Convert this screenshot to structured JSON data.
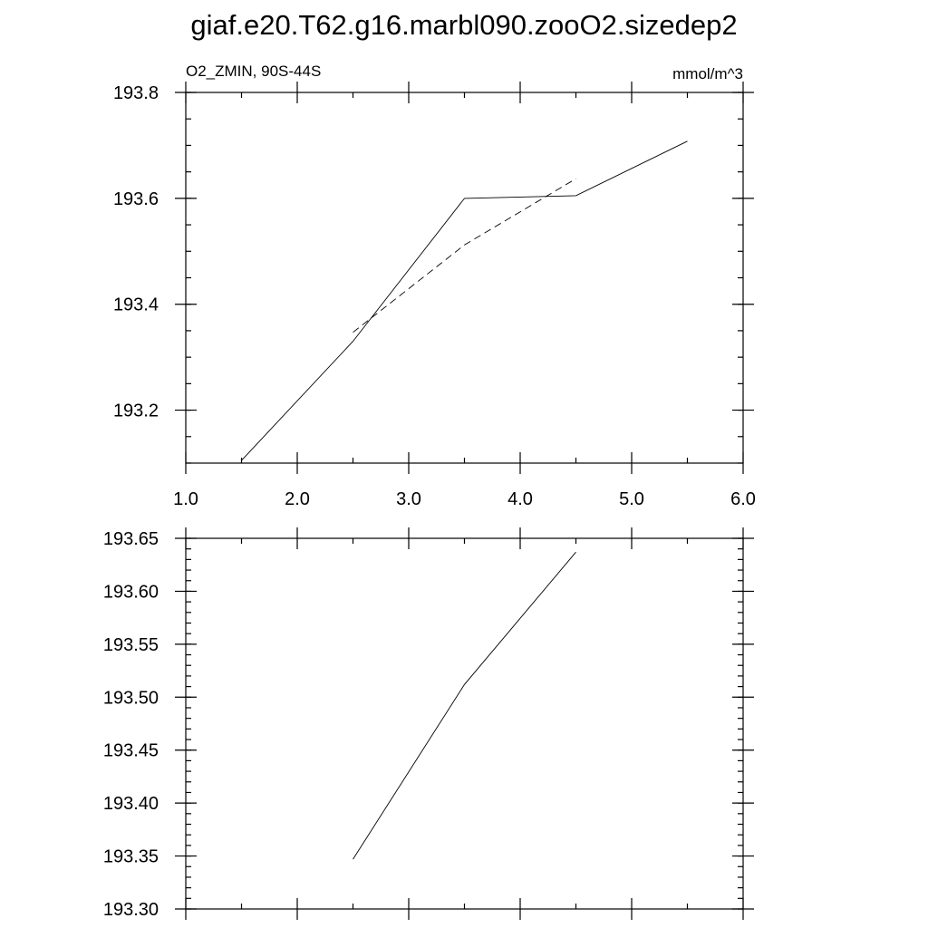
{
  "figure_title": "giaf.e20.T62.g16.marbl090.zooO2.sizedep2",
  "chart_data": [
    {
      "type": "line",
      "left_label": "O2_ZMIN, 90S-44S",
      "right_label": "mmol/m^3",
      "xlim": [
        1.0,
        6.0
      ],
      "ylim": [
        193.1,
        193.8
      ],
      "x_ticks": [
        1.0,
        2.0,
        3.0,
        4.0,
        5.0,
        6.0
      ],
      "x_tick_labels": [
        "1.0",
        "2.0",
        "3.0",
        "4.0",
        "5.0",
        "6.0"
      ],
      "y_ticks": [
        193.2,
        193.4,
        193.6,
        193.8
      ],
      "y_tick_labels": [
        "193.2",
        "193.4",
        "193.6",
        "193.8"
      ],
      "y_minor_step": 0.05,
      "grid": false,
      "series": [
        {
          "style": "solid",
          "x": [
            1.5,
            2.5,
            3.5,
            4.5,
            5.5
          ],
          "y": [
            193.105,
            193.33,
            193.6,
            193.605,
            193.708
          ]
        },
        {
          "style": "dashed",
          "x": [
            2.5,
            3.5,
            4.5
          ],
          "y": [
            193.347,
            193.512,
            193.637
          ]
        }
      ]
    },
    {
      "type": "line",
      "xlim": [
        1.0,
        6.0
      ],
      "ylim": [
        193.3,
        193.65
      ],
      "x_ticks": [
        1.0,
        2.0,
        3.0,
        4.0,
        5.0,
        6.0
      ],
      "y_ticks": [
        193.3,
        193.35,
        193.4,
        193.45,
        193.5,
        193.55,
        193.6,
        193.65
      ],
      "y_tick_labels": [
        "193.30",
        "193.35",
        "193.40",
        "193.45",
        "193.50",
        "193.55",
        "193.60",
        "193.65"
      ],
      "y_minor_step": 0.01,
      "grid": false,
      "series": [
        {
          "style": "solid",
          "x": [
            2.5,
            3.5,
            4.5
          ],
          "y": [
            193.347,
            193.512,
            193.637
          ]
        }
      ]
    }
  ]
}
